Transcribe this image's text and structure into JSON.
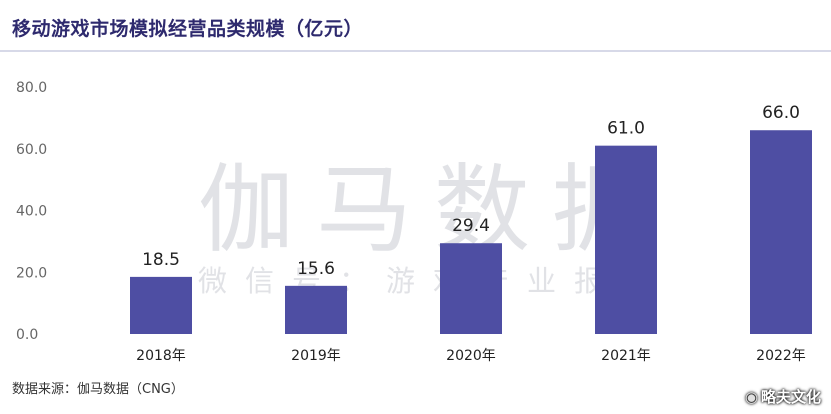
{
  "title": "移动游戏市场模拟经营品类规模（亿元）",
  "source": "数据来源：伽马数据（CNG）",
  "watermark": {
    "main": "伽马数据",
    "sub": "微信号：游戏产业报告"
  },
  "credit": {
    "icon": "weibo-icon",
    "text": "略夫文化"
  },
  "colors": {
    "bar": "#4e4ea3",
    "title": "#2e2a6e",
    "axis": "#666666",
    "label": "#222222"
  },
  "chart_data": {
    "type": "bar",
    "title": "移动游戏市场模拟经营品类规模（亿元）",
    "categories": [
      "2018年",
      "2019年",
      "2020年",
      "2021年",
      "2022年"
    ],
    "values": [
      18.5,
      15.6,
      29.4,
      61.0,
      66.0
    ],
    "value_labels": [
      "18.5",
      "15.6",
      "29.4",
      "61.0",
      "66.0"
    ],
    "yticks": [
      "0.0",
      "20.0",
      "40.0",
      "60.0",
      "80.0"
    ],
    "ytick_values": [
      0,
      20,
      40,
      60,
      80
    ],
    "ylim": [
      0,
      80
    ],
    "xlabel": "",
    "ylabel": "",
    "grid": false,
    "legend": "none"
  }
}
